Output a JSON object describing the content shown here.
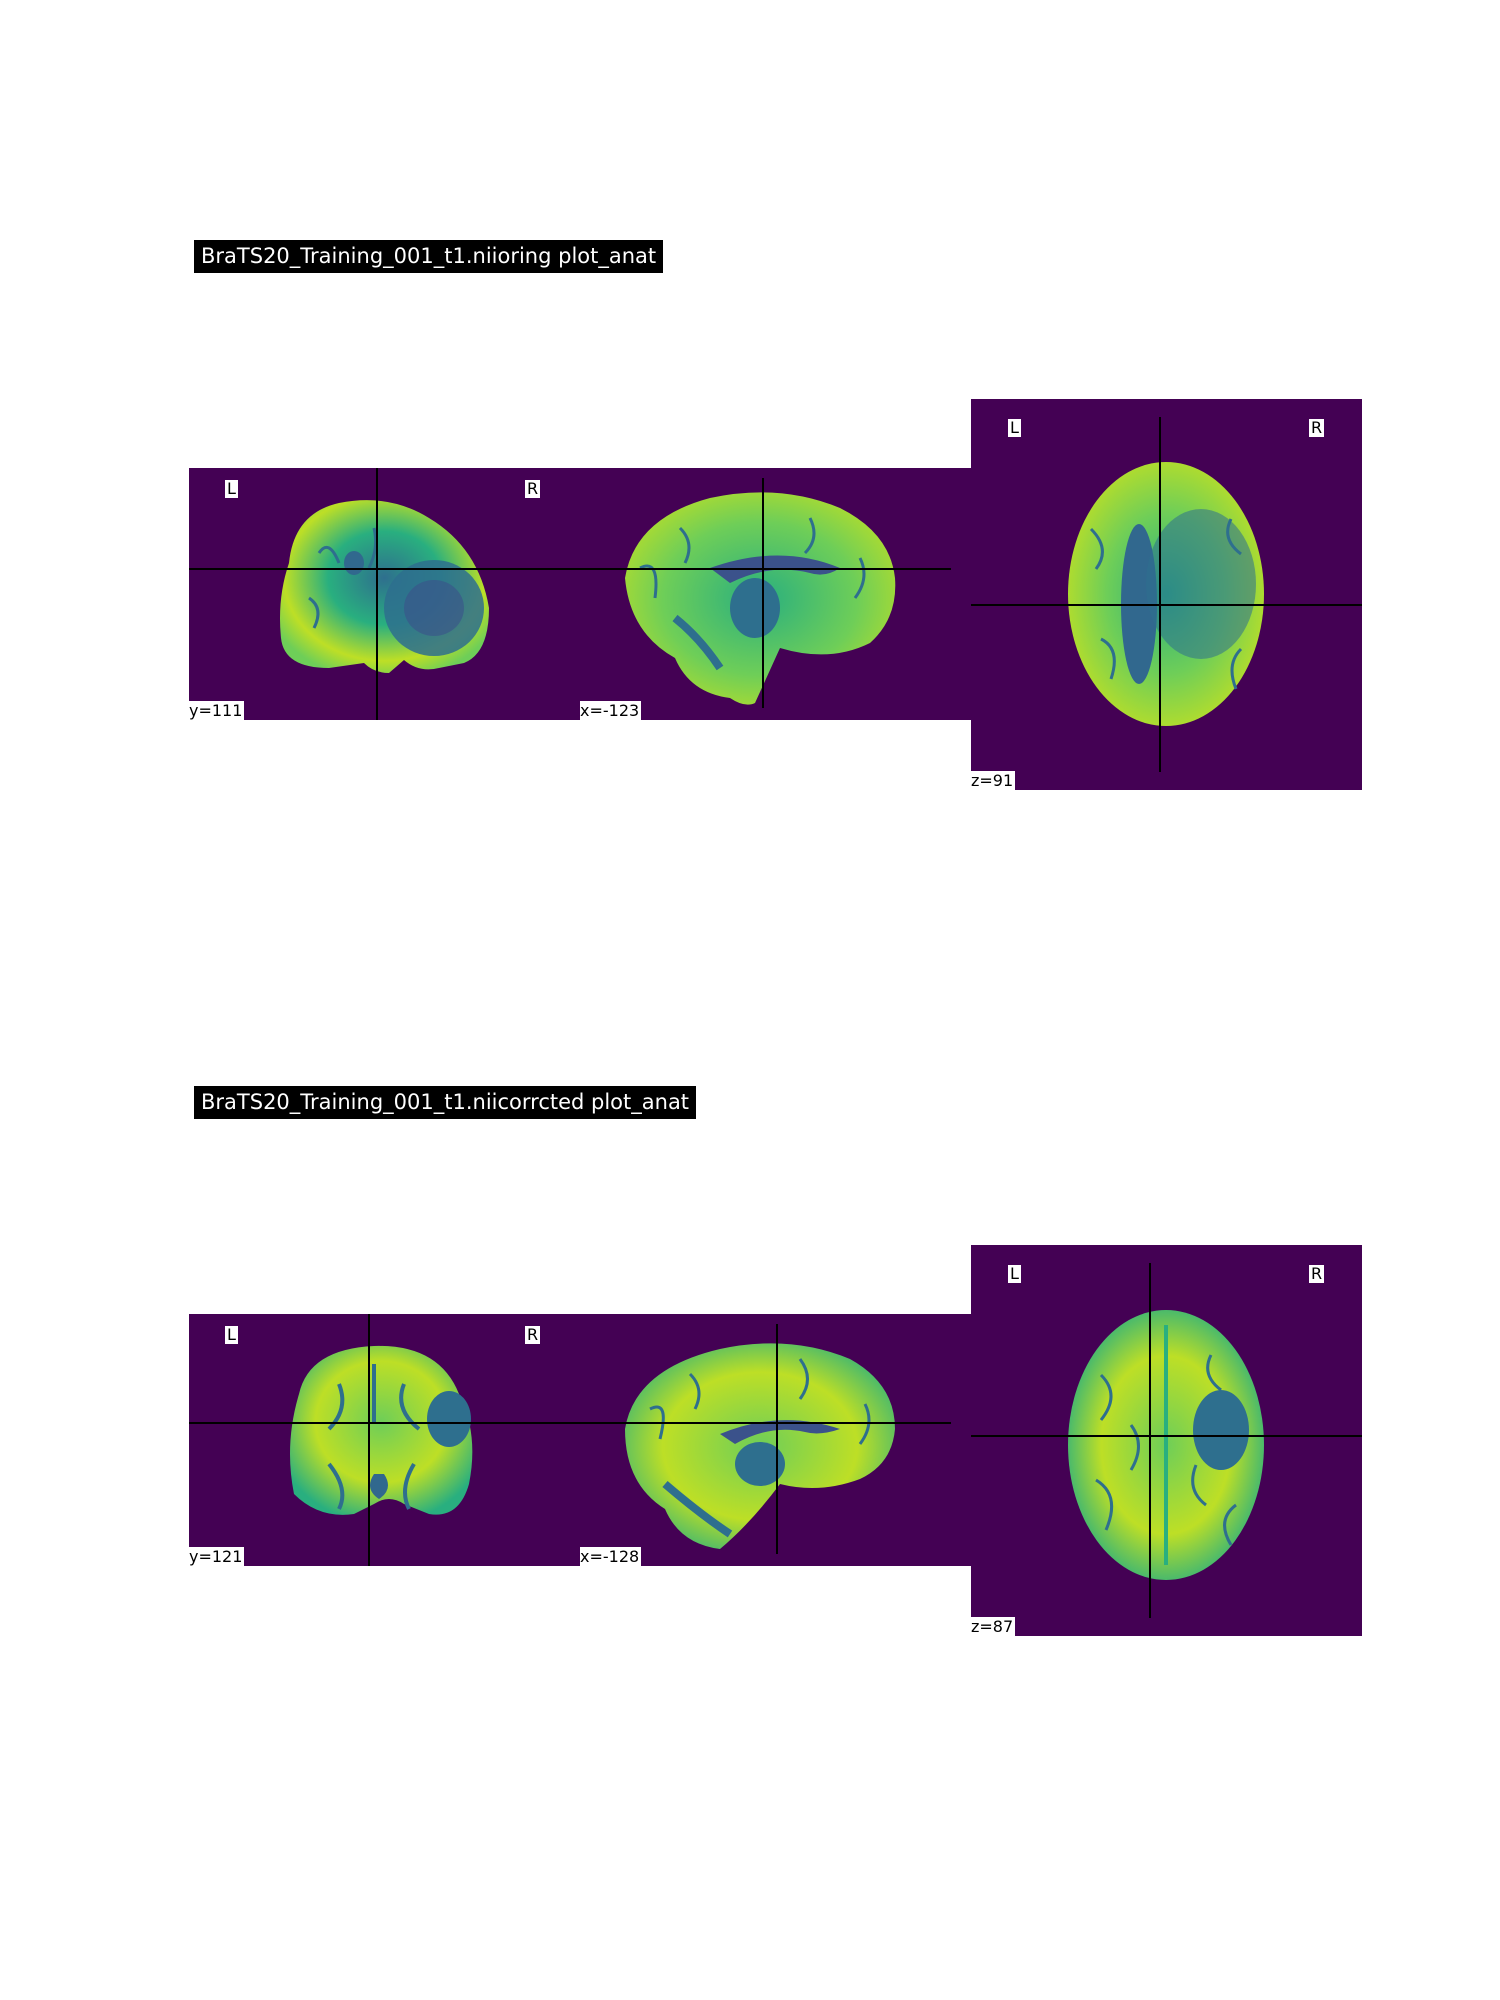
{
  "figures": [
    {
      "title": "BraTS20_Training_001_t1.niioring plot_anat",
      "coronal": {
        "coord": "y=111",
        "left_label": "L",
        "right_label": "R"
      },
      "sagittal": {
        "coord": "x=-123"
      },
      "axial": {
        "coord": "z=91",
        "left_label": "L",
        "right_label": "R"
      }
    },
    {
      "title": "BraTS20_Training_001_t1.niicorrcted plot_anat",
      "coronal": {
        "coord": "y=121",
        "left_label": "L",
        "right_label": "R"
      },
      "sagittal": {
        "coord": "x=-128"
      },
      "axial": {
        "coord": "z=87",
        "left_label": "L",
        "right_label": "R"
      }
    }
  ],
  "colors": {
    "background": "#440154",
    "brain_bright": "#bddf26",
    "brain_mid": "#29af7f",
    "brain_dark": "#2e6f8e",
    "crosshair": "#000000"
  }
}
